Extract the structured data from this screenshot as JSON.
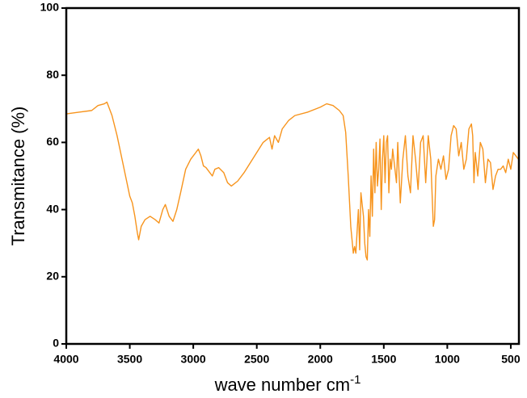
{
  "chart_data": {
    "type": "line",
    "xlabel": "wave number cm",
    "xlabel_superscript": "-1",
    "ylabel": "Transmitance (%)",
    "color": "#f7941d",
    "xlim": [
      4000,
      436
    ],
    "ylim": [
      0,
      100
    ],
    "xticks": [
      4000,
      3500,
      3000,
      2500,
      2000,
      1500,
      1000,
      500
    ],
    "yticks": [
      0,
      20,
      40,
      60,
      80,
      100
    ],
    "x": [
      4000,
      3900,
      3800,
      3750,
      3700,
      3680,
      3660,
      3640,
      3600,
      3550,
      3500,
      3480,
      3460,
      3440,
      3430,
      3410,
      3380,
      3340,
      3300,
      3270,
      3240,
      3220,
      3190,
      3160,
      3130,
      3100,
      3060,
      3020,
      2980,
      2960,
      2940,
      2920,
      2900,
      2870,
      2850,
      2830,
      2800,
      2760,
      2730,
      2700,
      2650,
      2600,
      2550,
      2500,
      2450,
      2400,
      2380,
      2360,
      2330,
      2300,
      2250,
      2200,
      2100,
      2000,
      1950,
      1900,
      1850,
      1820,
      1800,
      1780,
      1760,
      1740,
      1730,
      1720,
      1700,
      1690,
      1680,
      1660,
      1650,
      1640,
      1630,
      1620,
      1610,
      1600,
      1590,
      1580,
      1570,
      1560,
      1550,
      1540,
      1530,
      1520,
      1510,
      1500,
      1490,
      1480,
      1470,
      1460,
      1450,
      1440,
      1430,
      1400,
      1390,
      1370,
      1350,
      1330,
      1310,
      1290,
      1270,
      1250,
      1230,
      1210,
      1190,
      1170,
      1150,
      1130,
      1110,
      1100,
      1090,
      1070,
      1050,
      1030,
      1010,
      990,
      970,
      950,
      930,
      910,
      890,
      870,
      850,
      830,
      810,
      800,
      790,
      780,
      760,
      740,
      720,
      700,
      680,
      660,
      640,
      620,
      600,
      580,
      560,
      540,
      520,
      500,
      480,
      460,
      440
    ],
    "values": [
      68.5,
      69,
      69.5,
      71,
      71.5,
      72,
      70,
      68,
      62,
      53,
      44,
      42,
      38,
      33,
      31,
      35,
      37,
      38,
      37,
      36,
      40,
      41.5,
      38,
      36.5,
      40,
      45,
      52,
      55,
      57,
      58,
      56,
      53,
      52.5,
      51,
      50,
      52,
      52.5,
      51,
      48,
      47,
      48.5,
      51,
      54,
      57,
      60,
      61.5,
      58,
      62,
      60,
      64,
      66.5,
      68,
      69,
      70.5,
      71.5,
      71,
      69.5,
      68,
      63,
      50,
      35,
      27,
      29,
      27,
      40,
      28,
      45,
      38,
      30,
      26,
      25,
      40,
      32,
      50,
      38,
      58,
      45,
      60,
      47,
      52,
      61,
      40,
      55,
      62,
      48,
      60,
      62,
      45,
      55,
      52,
      58,
      48,
      60,
      42,
      55,
      62,
      50,
      45,
      62,
      55,
      46,
      60,
      62,
      48,
      62,
      55,
      35,
      37,
      50,
      55,
      52,
      56,
      49,
      52,
      62,
      65,
      64,
      56,
      60,
      52,
      55,
      64,
      65.5,
      62,
      48,
      57,
      50,
      60,
      58,
      48,
      55,
      54,
      46,
      50,
      52,
      52,
      53,
      51,
      55,
      52,
      57,
      56,
      55
    ]
  }
}
